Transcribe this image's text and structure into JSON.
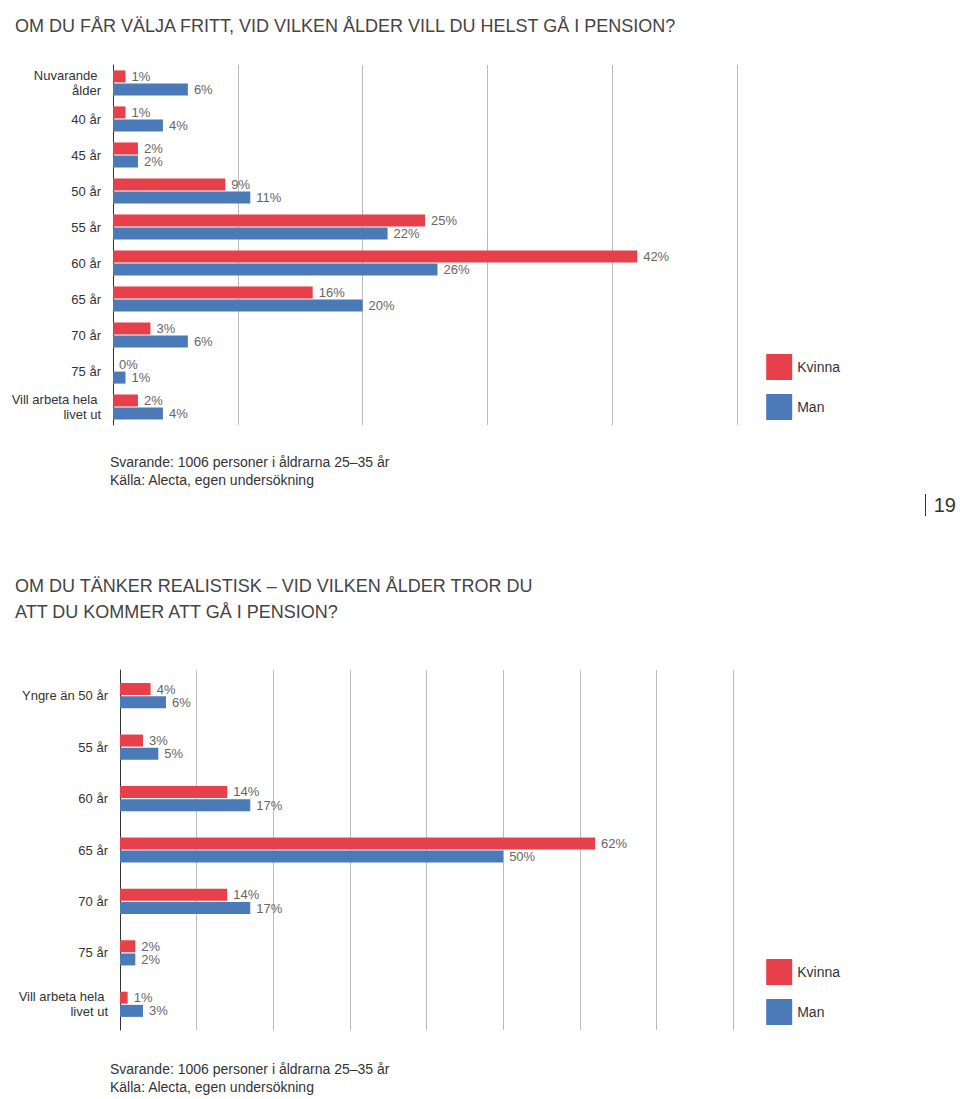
{
  "page_number": "19",
  "chart_data": [
    {
      "type": "bar",
      "orientation": "horizontal",
      "title": "OM DU FÅR VÄLJA FRITT, VID VILKEN ÅLDER VILL DU HELST GÅ I PENSION?",
      "categories": [
        "Nuvarande ålder",
        "40 år",
        "45 år",
        "50 år",
        "55 år",
        "60 år",
        "65 år",
        "70 år",
        "75 år",
        "Vill arbeta hela livet ut"
      ],
      "series": [
        {
          "name": "Kvinna",
          "color": "#e8404a",
          "values": [
            1,
            1,
            2,
            9,
            25,
            42,
            16,
            3,
            0,
            2
          ],
          "value_labels": [
            "1%",
            "1%",
            "2%",
            "9%",
            "25%",
            "42%",
            "16%",
            "3%",
            "0%",
            "2%"
          ]
        },
        {
          "name": "Man",
          "color": "#4a7ab8",
          "values": [
            6,
            4,
            2,
            11,
            22,
            26,
            20,
            6,
            1,
            4
          ],
          "value_labels": [
            "6%",
            "4%",
            "2%",
            "11%",
            "22%",
            "26%",
            "20%",
            "6%",
            "1%",
            "4%"
          ]
        }
      ],
      "xlim": [
        0,
        50
      ],
      "xticks": [
        0,
        10,
        20,
        30,
        40,
        50
      ],
      "grid": true,
      "tick_labels": "y",
      "data_labels": true,
      "legend": "lower right",
      "annotations": [
        "Svarande: 1006 personer i åldrarna 25–35 år",
        "Källa: Alecta, egen undersökning"
      ]
    },
    {
      "type": "bar",
      "orientation": "horizontal",
      "title": "OM DU TÄNKER REALISTISK – VID VILKEN ÅLDER TROR DU\nATT DU KOMMER ATT GÅ I PENSION?",
      "categories": [
        "Yngre än 50 år",
        "55 år",
        "60 år",
        "65 år",
        "70 år",
        "75 år",
        "Vill arbeta hela livet ut"
      ],
      "series": [
        {
          "name": "Kvinna",
          "color": "#e8404a",
          "values": [
            4,
            3,
            14,
            62,
            14,
            2,
            1
          ],
          "value_labels": [
            "4%",
            "3%",
            "14%",
            "62%",
            "14%",
            "2%",
            "1%"
          ]
        },
        {
          "name": "Man",
          "color": "#4a7ab8",
          "values": [
            6,
            5,
            17,
            50,
            17,
            2,
            3
          ],
          "value_labels": [
            "6%",
            "5%",
            "17%",
            "50%",
            "17%",
            "2%",
            "3%"
          ]
        }
      ],
      "xlim": [
        0,
        80
      ],
      "xticks": [
        0,
        10,
        20,
        30,
        40,
        50,
        60,
        70,
        80
      ],
      "grid": true,
      "tick_labels": "y",
      "data_labels": true,
      "legend": "lower right",
      "annotations": [
        "Svarande: 1006 personer i åldrarna 25–35 år",
        "Källa: Alecta, egen undersökning"
      ]
    }
  ]
}
